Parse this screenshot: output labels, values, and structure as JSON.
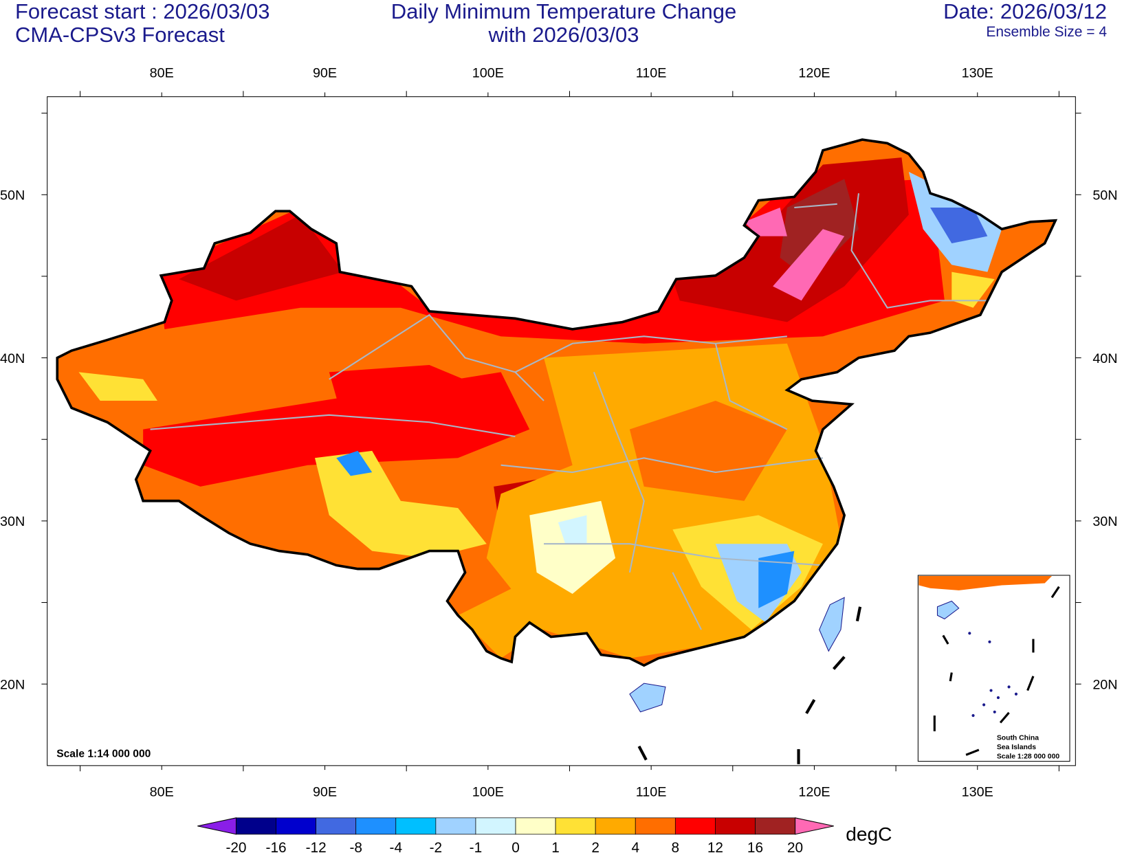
{
  "header": {
    "forecast_start": "Forecast start : 2026/03/03",
    "model": "CMA-CPSv3 Forecast",
    "title_line1": "Daily Minimum Temperature Change",
    "title_line2": "with 2026/03/03",
    "date": "Date: 2026/03/12",
    "ensemble": "Ensemble Size = 4"
  },
  "axes": {
    "lon_labels": [
      "80E",
      "90E",
      "100E",
      "110E",
      "120E",
      "130E"
    ],
    "lat_labels": [
      "50N",
      "40N",
      "30N",
      "20N"
    ]
  },
  "map": {
    "scale": "Scale 1:14 000 000",
    "inset_label_1": "South China",
    "inset_label_2": "Sea Islands",
    "inset_scale": "Scale 1:28 000 000"
  },
  "colorbar": {
    "unit": "degC",
    "labels": [
      "-20",
      "-16",
      "-12",
      "-8",
      "-4",
      "-2",
      "-1",
      "0",
      "1",
      "2",
      "4",
      "8",
      "12",
      "16",
      "20"
    ],
    "colors": [
      "#8a1ee8",
      "#00008b",
      "#0000cd",
      "#4169e1",
      "#1e90ff",
      "#00bfff",
      "#a0d2ff",
      "#d2f5ff",
      "#ffffc8",
      "#ffe135",
      "#ffaa00",
      "#ff6e00",
      "#ff0000",
      "#c80000",
      "#a02222",
      "#ff69b4"
    ]
  }
}
